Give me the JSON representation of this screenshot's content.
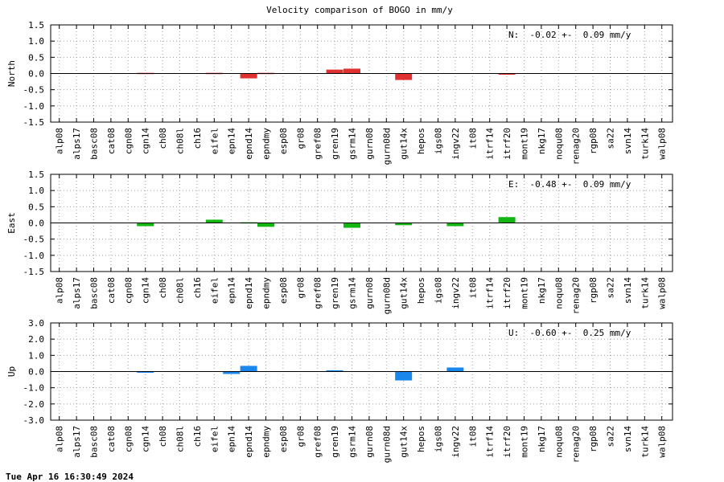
{
  "chart_data": [
    {
      "type": "bar",
      "title": "Velocity comparison of BOGO in mm/y",
      "ylabel": "North",
      "ylim": [
        -1.5,
        1.5
      ],
      "yticks": [
        "1.5",
        "1.0",
        "0.5",
        "0.0",
        "-0.5",
        "-1.0",
        "-1.5"
      ],
      "grid": true,
      "summary": "N:  -0.02 +-  0.09 mm/y",
      "color": "#e03131",
      "categories": [
        "alp08",
        "alps17",
        "basc08",
        "cat08",
        "cgn08",
        "cgn14",
        "ch08",
        "ch08l",
        "ch16",
        "eifel",
        "epn14",
        "epnd14",
        "epndmy",
        "esp08",
        "gr08",
        "gref08",
        "gren19",
        "gsrm14",
        "gurn08",
        "gurn08d",
        "gut14x",
        "hepos",
        "igs08",
        "ingv22",
        "it08",
        "itrf14",
        "itrf20",
        "mont19",
        "nkg17",
        "noqu08",
        "renag20",
        "rgp08",
        "sa22",
        "svn14",
        "turk14",
        "walp08"
      ],
      "values": [
        0,
        0,
        0,
        0,
        0,
        0.02,
        0,
        0,
        0,
        0.02,
        0,
        -0.15,
        0.02,
        0,
        0,
        0,
        0.12,
        0.15,
        0,
        0,
        -0.2,
        0,
        0,
        0,
        0,
        0,
        -0.02,
        0,
        0,
        0,
        0,
        0,
        0,
        0,
        0,
        0
      ]
    },
    {
      "type": "bar",
      "title": "",
      "ylabel": "East",
      "ylim": [
        -1.5,
        1.5
      ],
      "yticks": [
        "1.5",
        "1.0",
        "0.5",
        "0.0",
        "-0.5",
        "-1.0",
        "-1.5"
      ],
      "grid": true,
      "summary": "E:  -0.48 +-  0.09 mm/y",
      "color": "#13b513",
      "categories": [
        "alp08",
        "alps17",
        "basc08",
        "cat08",
        "cgn08",
        "cgn14",
        "ch08",
        "ch08l",
        "ch16",
        "eifel",
        "epn14",
        "epnd14",
        "epndmy",
        "esp08",
        "gr08",
        "gref08",
        "gren19",
        "gsrm14",
        "gurn08",
        "gurn08d",
        "gut14x",
        "hepos",
        "igs08",
        "ingv22",
        "it08",
        "itrf14",
        "itrf20",
        "mont19",
        "nkg17",
        "noqu08",
        "renag20",
        "rgp08",
        "sa22",
        "svn14",
        "turk14",
        "walp08"
      ],
      "values": [
        0,
        0,
        0,
        0,
        0,
        -0.1,
        0,
        0,
        0,
        0.1,
        0,
        0.02,
        -0.12,
        0,
        0,
        0,
        0,
        -0.15,
        0,
        0,
        -0.07,
        0,
        0,
        -0.1,
        0,
        0,
        0.18,
        0,
        0,
        0,
        0,
        0,
        0,
        0,
        0,
        0
      ]
    },
    {
      "type": "bar",
      "title": "",
      "ylabel": "Up",
      "ylim": [
        -3.0,
        3.0
      ],
      "yticks": [
        "3.0",
        "2.0",
        "1.0",
        "0.0",
        "-1.0",
        "-2.0",
        "-3.0"
      ],
      "grid": true,
      "summary": "U:  -0.60 +-  0.25 mm/y",
      "color": "#1a87ec",
      "categories": [
        "alp08",
        "alps17",
        "basc08",
        "cat08",
        "cgn08",
        "cgn14",
        "ch08",
        "ch08l",
        "ch16",
        "eifel",
        "epn14",
        "epnd14",
        "epndmy",
        "esp08",
        "gr08",
        "gref08",
        "gren19",
        "gsrm14",
        "gurn08",
        "gurn08d",
        "gut14x",
        "hepos",
        "igs08",
        "ingv22",
        "it08",
        "itrf14",
        "itrf20",
        "mont19",
        "nkg17",
        "noqu08",
        "renag20",
        "rgp08",
        "sa22",
        "svn14",
        "turk14",
        "walp08"
      ],
      "values": [
        0,
        0,
        0,
        0,
        0,
        -0.05,
        0,
        0,
        0,
        0,
        -0.15,
        0.35,
        0,
        0,
        0,
        0,
        0.08,
        0,
        0,
        0,
        -0.55,
        0,
        0,
        0.25,
        0,
        0,
        0,
        0,
        0,
        0,
        0,
        0,
        0,
        0,
        0,
        0
      ]
    }
  ],
  "footer": {
    "timestamp": "Tue Apr 16 16:30:49 2024"
  }
}
